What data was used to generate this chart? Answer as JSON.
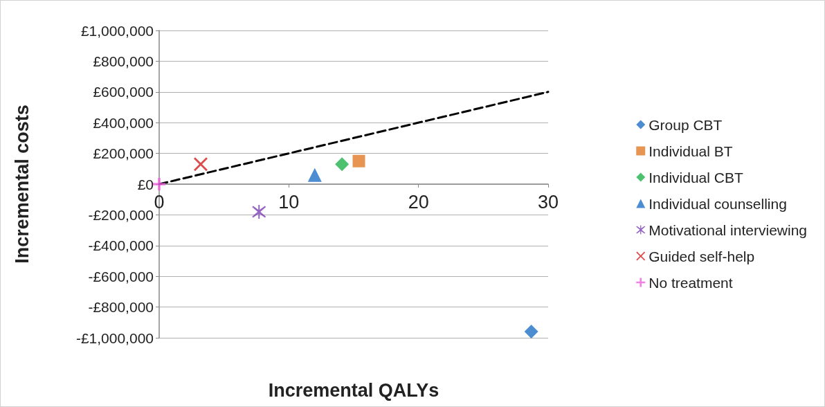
{
  "chart_data": {
    "type": "scatter",
    "xlabel": "Incremental QALYs",
    "ylabel": "Incremental costs",
    "xlim": [
      0,
      30
    ],
    "xticks": [
      0,
      10,
      20,
      30
    ],
    "ylim": [
      -1000000,
      1000000
    ],
    "yticks": [
      {
        "value": -1000000,
        "label": "-£1,000,000"
      },
      {
        "value": -800000,
        "label": "-£800,000"
      },
      {
        "value": -600000,
        "label": "-£600,000"
      },
      {
        "value": -400000,
        "label": "-£400,000"
      },
      {
        "value": -200000,
        "label": "-£200,000"
      },
      {
        "value": 0,
        "label": "£0"
      },
      {
        "value": 200000,
        "label": "£200,000"
      },
      {
        "value": 400000,
        "label": "£400,000"
      },
      {
        "value": 600000,
        "label": "£600,000"
      },
      {
        "value": 800000,
        "label": "£800,000"
      },
      {
        "value": 1000000,
        "label": "£1,000,000"
      }
    ],
    "grid": "y",
    "legend": "right",
    "series": [
      {
        "type": "line",
        "x": [
          0,
          30
        ],
        "values": [
          0,
          600000
        ],
        "color": "#000000",
        "line_style": "dashed",
        "marker": "none"
      },
      {
        "name": "Group CBT",
        "color": "#1f6fc5",
        "marker": "diamond",
        "x": [
          28.7
        ],
        "values": [
          -960000
        ]
      },
      {
        "name": "Individual BT",
        "color": "#e07a27",
        "marker": "square",
        "x": [
          15.4
        ],
        "values": [
          150000
        ]
      },
      {
        "name": "Individual CBT",
        "color": "#22b24c",
        "marker": "diamond",
        "x": [
          14.1
        ],
        "values": [
          130000
        ]
      },
      {
        "name": "Individual counselling",
        "color": "#1f6fc5",
        "marker": "triangle",
        "x": [
          12.0
        ],
        "values": [
          60000
        ]
      },
      {
        "name": "Motivational interviewing",
        "color": "#7b3fb5",
        "marker": "star",
        "x": [
          7.7
        ],
        "values": [
          -180000
        ]
      },
      {
        "name": "Guided self-help",
        "color": "#d02020",
        "marker": "x",
        "x": [
          3.2
        ],
        "values": [
          130000
        ]
      },
      {
        "name": "No treatment",
        "color": "#f060e0",
        "marker": "plus",
        "x": [
          0
        ],
        "values": [
          0
        ]
      }
    ]
  }
}
